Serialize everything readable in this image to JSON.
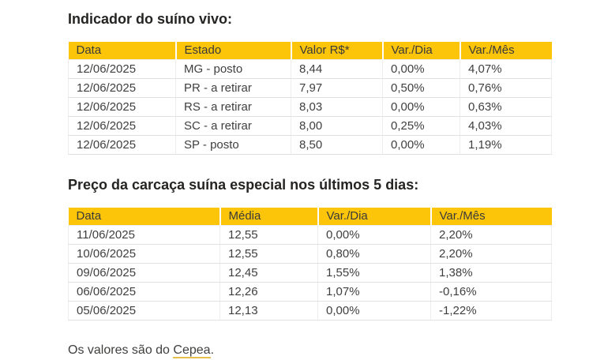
{
  "colors": {
    "header_bg": "#FCC50A",
    "header_text": "#3B3A39",
    "body_text": "#3F3F3E",
    "title_text": "#252423",
    "row_border": "#E1E1E1",
    "link_underline": "#E6C04A",
    "background": "#FFFFFF"
  },
  "chart_data": [
    {
      "type": "table",
      "title": "Indicador do suíno vivo:",
      "columns": [
        "Data",
        "Estado",
        "Valor R$*",
        "Var./Dia",
        "Var./Mês"
      ],
      "rows": [
        [
          "12/06/2025",
          "MG - posto",
          "8,44",
          "0,00%",
          "4,07%"
        ],
        [
          "12/06/2025",
          "PR - a retirar",
          "7,97",
          "0,50%",
          "0,76%"
        ],
        [
          "12/06/2025",
          "RS - a retirar",
          "8,03",
          "0,00%",
          "0,63%"
        ],
        [
          "12/06/2025",
          "SC - a retirar",
          "8,00",
          "0,25%",
          "4,03%"
        ],
        [
          "12/06/2025",
          "SP - posto",
          "8,50",
          "0,00%",
          "1,19%"
        ]
      ]
    },
    {
      "type": "table",
      "title": "Preço da carcaça suína especial nos últimos 5 dias:",
      "columns": [
        "Data",
        "Média",
        "Var./Dia",
        "Var./Mês"
      ],
      "rows": [
        [
          "11/06/2025",
          "12,55",
          "0,00%",
          "2,20%"
        ],
        [
          "10/06/2025",
          "12,55",
          "0,80%",
          "2,20%"
        ],
        [
          "09/06/2025",
          "12,45",
          "1,55%",
          "1,38%"
        ],
        [
          "06/06/2025",
          "12,26",
          "1,07%",
          "-0,16%"
        ],
        [
          "05/06/2025",
          "12,13",
          "0,00%",
          "-1,22%"
        ]
      ]
    }
  ],
  "footer": {
    "prefix": "Os valores são do ",
    "link": "Cepea",
    "suffix": "."
  }
}
